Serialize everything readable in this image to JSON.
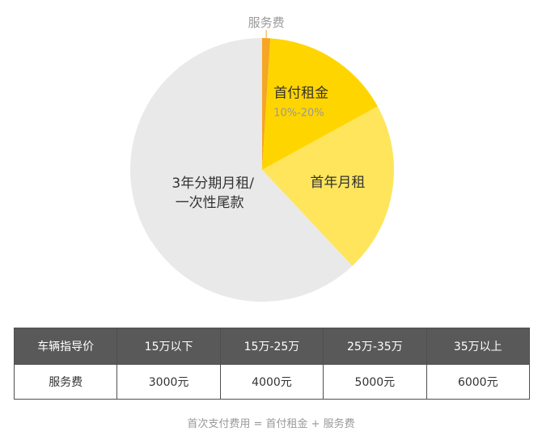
{
  "chart_data": {
    "type": "pie",
    "slices": [
      {
        "label": "服务费",
        "value": 1,
        "color": "#F5A623"
      },
      {
        "label": "首付租金",
        "sublabel": "10%-20%",
        "value": 16,
        "color": "#FFD500"
      },
      {
        "label": "首年月租",
        "value": 21,
        "color": "#FFE55C"
      },
      {
        "label": "3年分期月租/一次性尾款",
        "label_lines": [
          "3年分期月租/",
          "一次性尾款"
        ],
        "value": 62,
        "color": "#E9E9E9"
      }
    ]
  },
  "table": {
    "header": [
      "车辆指导价",
      "15万以下",
      "15万-25万",
      "25万-35万",
      "35万以上"
    ],
    "row": [
      "服务费",
      "3000元",
      "4000元",
      "5000元",
      "6000元"
    ]
  },
  "formula": "首次支付费用 = 首付租金 + 服务费"
}
